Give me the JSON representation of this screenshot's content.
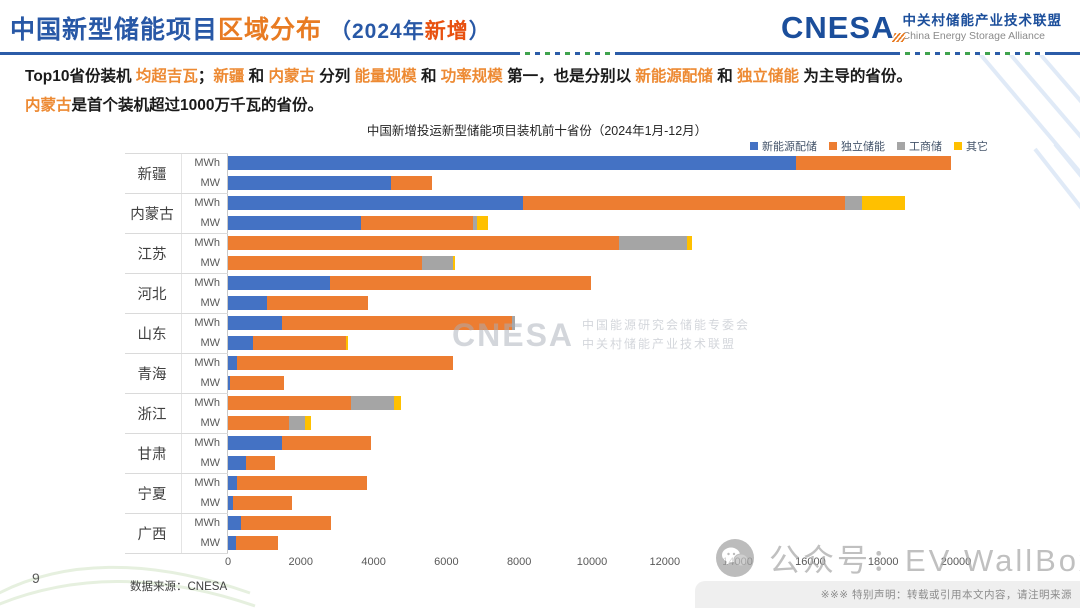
{
  "header": {
    "title_part1": "中国新型储能项目",
    "title_part2": "区域分布",
    "title_part3": "（2024年",
    "title_part4": "新增",
    "title_part5": "）",
    "logo_text": "CNESA",
    "logo_cn": "中关村储能产业技术联盟",
    "logo_en": "China Energy Storage Alliance"
  },
  "summary": {
    "line1_segments": [
      {
        "text": "Top10省份装机 ",
        "highlight": false
      },
      {
        "text": "均超吉瓦",
        "highlight": true
      },
      {
        "text": "；",
        "highlight": false
      },
      {
        "text": "新疆",
        "highlight": true
      },
      {
        "text": " 和 ",
        "highlight": false
      },
      {
        "text": "内蒙古",
        "highlight": true
      },
      {
        "text": " 分列 ",
        "highlight": false
      },
      {
        "text": "能量规模",
        "highlight": true
      },
      {
        "text": " 和 ",
        "highlight": false
      },
      {
        "text": "功率规模",
        "highlight": true
      },
      {
        "text": " 第一，也是分别以 ",
        "highlight": false
      },
      {
        "text": "新能源配储",
        "highlight": true
      },
      {
        "text": " 和 ",
        "highlight": false
      },
      {
        "text": "独立储能",
        "highlight": true
      },
      {
        "text": " 为主导的省份。",
        "highlight": false
      }
    ],
    "line2_segments": [
      {
        "text": "内蒙古",
        "highlight": true
      },
      {
        "text": "是首个装机超过1000万千瓦的省份。",
        "highlight": false
      }
    ]
  },
  "chart_data": {
    "type": "bar",
    "orientation": "horizontal-stacked",
    "title": "中国新增投运新型储能项目装机前十省份（2024年1月-12月）",
    "legend": [
      "新能源配储",
      "独立储能",
      "工商储",
      "其它"
    ],
    "legend_colors": [
      "#4472C4",
      "#ED7D31",
      "#A5A5A5",
      "#FFC000"
    ],
    "legend_position": "top-right",
    "grid": false,
    "xlim": [
      0,
      20000
    ],
    "xticks": [
      0,
      2000,
      4000,
      6000,
      8000,
      10000,
      12000,
      14000,
      16000,
      18000,
      20000
    ],
    "unit_labels": [
      "MWh",
      "MW"
    ],
    "series_note": "values per province are [新能源配储, 独立储能, 工商储, 其它], estimated from bar lengths",
    "provinces": [
      {
        "name": "新疆",
        "mwh": [
          15600,
          4250,
          0,
          0
        ],
        "mw": [
          4480,
          1130,
          0,
          0
        ]
      },
      {
        "name": "内蒙古",
        "mwh": [
          8100,
          8850,
          470,
          1190
        ],
        "mw": [
          3660,
          3080,
          110,
          300
        ]
      },
      {
        "name": "江苏",
        "mwh": [
          0,
          10750,
          1870,
          130
        ],
        "mw": [
          0,
          5340,
          850,
          60
        ]
      },
      {
        "name": "河北",
        "mwh": [
          2800,
          7180,
          0,
          0
        ],
        "mw": [
          1070,
          2780,
          0,
          0
        ]
      },
      {
        "name": "山东",
        "mwh": [
          1490,
          6300,
          90,
          0
        ],
        "mw": [
          690,
          2560,
          0,
          60
        ]
      },
      {
        "name": "青海",
        "mwh": [
          250,
          5940,
          0,
          0
        ],
        "mw": [
          60,
          1490,
          0,
          0
        ]
      },
      {
        "name": "浙江",
        "mwh": [
          0,
          3380,
          1180,
          190
        ],
        "mw": [
          0,
          1680,
          440,
          170
        ]
      },
      {
        "name": "甘肃",
        "mwh": [
          1490,
          2450,
          0,
          0
        ],
        "mw": [
          500,
          800,
          0,
          0
        ]
      },
      {
        "name": "宁夏",
        "mwh": [
          250,
          3580,
          0,
          0
        ],
        "mw": [
          140,
          1620,
          0,
          0
        ]
      },
      {
        "name": "广西",
        "mwh": [
          360,
          2480,
          0,
          0
        ],
        "mw": [
          220,
          1160,
          0,
          0
        ]
      }
    ]
  },
  "watermarks": {
    "center_logo": "CNESA",
    "center_line1": "中国能源研究会储能专委会",
    "center_line2": "中关村储能产业技术联盟",
    "bottom_text": "公众号：EV WallBox"
  },
  "footer": {
    "page_number": "9",
    "source": "数据来源：CNESA",
    "disclaimer": "※※※ 特别声明：转载或引用本文内容，请注明来源"
  }
}
